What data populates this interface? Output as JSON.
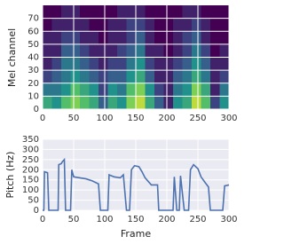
{
  "chart_data": [
    {
      "type": "heatmap",
      "ylabel": "Mel channel",
      "xlim": [
        0,
        300
      ],
      "ylim": [
        0,
        80
      ],
      "xticks": [
        0,
        50,
        100,
        150,
        200,
        250,
        300
      ],
      "yticks": [
        0,
        10,
        20,
        30,
        40,
        50,
        60,
        70
      ],
      "grid": true,
      "grid_color": "#ffffff",
      "colors": [
        "#440154",
        "#3b528b",
        "#21918c",
        "#5ec962",
        "#fde725"
      ],
      "values": [
        [
          0.6,
          0.5,
          0.7,
          0.8,
          0.7,
          0.6,
          0.3,
          0.6,
          0.5,
          0.8,
          0.9,
          0.6,
          0.3,
          0.1,
          0.5,
          0.6,
          0.9,
          0.7,
          0.2,
          0.5
        ],
        [
          0.4,
          0.4,
          0.5,
          0.7,
          0.6,
          0.5,
          0.2,
          0.5,
          0.4,
          0.7,
          0.8,
          0.5,
          0.2,
          0.1,
          0.4,
          0.5,
          0.8,
          0.6,
          0.1,
          0.4
        ],
        [
          0.2,
          0.3,
          0.4,
          0.5,
          0.4,
          0.3,
          0.2,
          0.3,
          0.3,
          0.5,
          0.6,
          0.3,
          0.1,
          0.1,
          0.3,
          0.4,
          0.6,
          0.4,
          0.1,
          0.2
        ],
        [
          0.1,
          0.2,
          0.4,
          0.4,
          0.3,
          0.2,
          0.1,
          0.2,
          0.2,
          0.4,
          0.5,
          0.2,
          0.1,
          0.1,
          0.2,
          0.3,
          0.5,
          0.3,
          0.1,
          0.1
        ],
        [
          0.1,
          0.1,
          0.3,
          0.3,
          0.2,
          0.1,
          0.1,
          0.1,
          0.2,
          0.3,
          0.4,
          0.1,
          0.1,
          0.0,
          0.1,
          0.2,
          0.4,
          0.2,
          0.0,
          0.1
        ],
        [
          0.1,
          0.1,
          0.2,
          0.2,
          0.1,
          0.1,
          0.0,
          0.1,
          0.1,
          0.2,
          0.3,
          0.1,
          0.0,
          0.0,
          0.1,
          0.2,
          0.3,
          0.1,
          0.0,
          0.0
        ],
        [
          0.0,
          0.1,
          0.1,
          0.1,
          0.1,
          0.0,
          0.0,
          0.1,
          0.1,
          0.2,
          0.2,
          0.1,
          0.0,
          0.0,
          0.1,
          0.1,
          0.2,
          0.1,
          0.0,
          0.0
        ],
        [
          0.0,
          0.0,
          0.1,
          0.1,
          0.0,
          0.0,
          0.0,
          0.0,
          0.1,
          0.1,
          0.1,
          0.0,
          0.0,
          0.0,
          0.0,
          0.1,
          0.1,
          0.0,
          0.0,
          0.0
        ]
      ]
    },
    {
      "type": "line",
      "xlabel": "Frame",
      "ylabel": "Pitch (Hz)",
      "xlim": [
        0,
        300
      ],
      "ylim": [
        0,
        350
      ],
      "xticks": [
        0,
        50,
        100,
        150,
        200,
        250,
        300
      ],
      "yticks": [
        0,
        50,
        100,
        150,
        200,
        250,
        300,
        350
      ],
      "grid": true,
      "grid_color": "#ffffff",
      "background": "#eaeaf2",
      "color": "#4c72b0",
      "x": [
        0,
        2,
        3,
        8,
        10,
        25,
        26,
        30,
        32,
        35,
        37,
        45,
        47,
        50,
        60,
        70,
        80,
        90,
        93,
        105,
        107,
        115,
        125,
        130,
        135,
        140,
        143,
        148,
        155,
        160,
        165,
        175,
        185,
        187,
        210,
        212,
        216,
        220,
        222,
        228,
        235,
        238,
        243,
        250,
        255,
        262,
        267,
        270,
        290,
        293,
        300
      ],
      "values": [
        0,
        0,
        190,
        185,
        0,
        0,
        225,
        230,
        240,
        250,
        0,
        0,
        200,
        165,
        160,
        155,
        145,
        130,
        0,
        0,
        175,
        165,
        160,
        175,
        0,
        0,
        200,
        220,
        215,
        190,
        160,
        125,
        125,
        0,
        0,
        165,
        0,
        0,
        170,
        0,
        0,
        200,
        225,
        205,
        165,
        135,
        115,
        0,
        0,
        120,
        125
      ]
    }
  ]
}
